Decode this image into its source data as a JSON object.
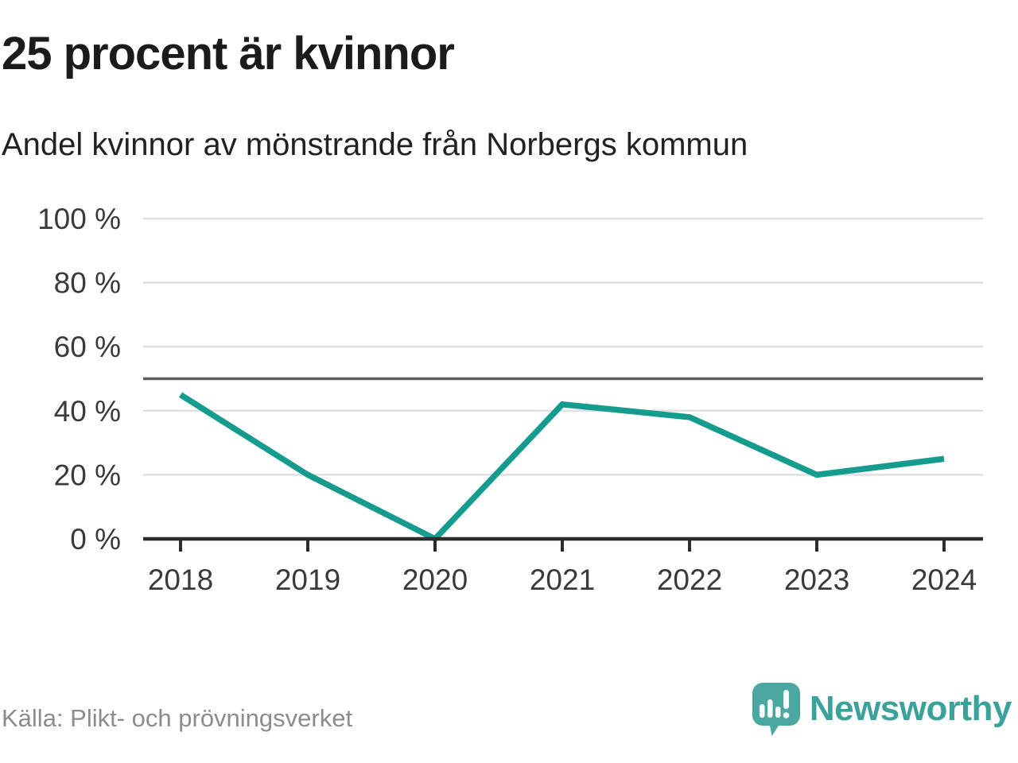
{
  "header": {
    "title": "25 procent är kvinnor",
    "subtitle": "Andel kvinnor av mönstrande från Norbergs kommun"
  },
  "chart_data": {
    "type": "line",
    "categories": [
      "2018",
      "2019",
      "2020",
      "2021",
      "2022",
      "2023",
      "2024"
    ],
    "values": [
      45,
      20,
      0,
      42,
      38,
      20,
      25
    ],
    "title": "25 procent är kvinnor",
    "subtitle": "Andel kvinnor av mönstrande från Norbergs kommun",
    "xlabel": "",
    "ylabel": "",
    "ylim": [
      0,
      100
    ],
    "yticks": [
      0,
      20,
      40,
      60,
      80,
      100
    ],
    "ytick_labels": [
      "0 %",
      "20 %",
      "40 %",
      "60 %",
      "80 %",
      "100 %"
    ],
    "reference_line": 50,
    "grid": "horizontal",
    "legend": "none",
    "series_name": "Andel kvinnor",
    "colors": {
      "line": "#169b8f",
      "grid": "#e0e0e2",
      "reference": "#5c5d64",
      "axis": "#2d2d30",
      "tick_label": "#3a3a3e"
    }
  },
  "footer": {
    "source": "Källa: Plikt- och prövningsverket",
    "brand": "Newsworthy",
    "brand_colors": {
      "icon": "#4ba7a1",
      "text": "#3aa29b"
    }
  }
}
